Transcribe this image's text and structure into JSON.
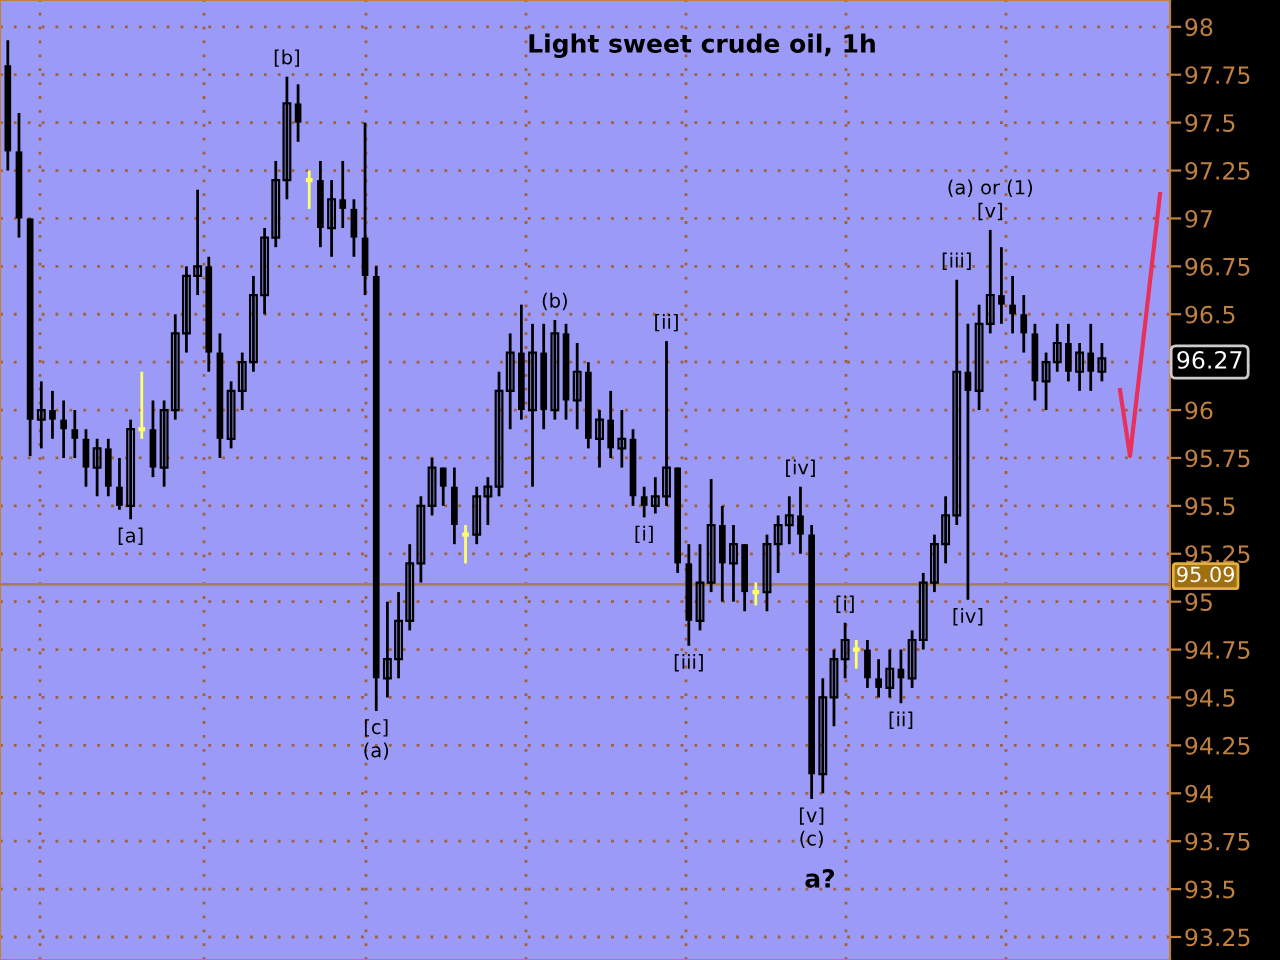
{
  "chart_data": {
    "type": "candlestick",
    "title": "Light sweet crude oil, 1h",
    "categories": [
      null,
      null,
      null,
      null,
      null,
      null,
      null,
      null,
      null,
      null,
      null,
      null,
      null,
      null,
      null,
      null,
      null,
      null,
      null,
      null,
      null,
      null,
      null,
      null,
      null,
      null,
      null,
      null,
      null,
      null,
      null,
      null,
      null,
      null,
      null,
      null,
      null,
      null,
      null,
      null,
      null,
      null,
      null,
      null,
      null,
      null,
      null,
      null,
      null,
      null,
      null,
      null,
      null,
      null,
      null,
      null,
      null,
      null,
      null,
      null,
      null,
      null,
      null,
      null,
      null,
      null,
      null,
      null,
      null,
      null,
      null,
      null,
      null,
      null,
      null,
      null,
      null,
      null,
      null,
      null,
      null,
      null,
      null,
      null,
      null,
      null,
      null,
      null,
      null,
      null,
      null,
      null,
      null,
      null,
      null,
      null,
      null,
      null,
      null
    ],
    "ohlc": [
      [
        97.8,
        97.93,
        97.25,
        97.35
      ],
      [
        97.35,
        97.55,
        96.9,
        97.0
      ],
      [
        97.0,
        97.0,
        95.76,
        95.95
      ],
      [
        95.95,
        96.15,
        95.8,
        96.0
      ],
      [
        96.0,
        96.1,
        95.85,
        95.95
      ],
      [
        95.95,
        96.05,
        95.75,
        95.9
      ],
      [
        95.9,
        96.0,
        95.75,
        95.85
      ],
      [
        95.85,
        95.9,
        95.6,
        95.7
      ],
      [
        95.7,
        95.85,
        95.55,
        95.8
      ],
      [
        95.8,
        95.85,
        95.55,
        95.6
      ],
      [
        95.6,
        95.75,
        95.48,
        95.5
      ],
      [
        95.5,
        95.95,
        95.43,
        95.9
      ],
      [
        95.9,
        96.2,
        95.85,
        95.9
      ],
      [
        95.9,
        96.05,
        95.65,
        95.7
      ],
      [
        95.7,
        96.05,
        95.6,
        96.0
      ],
      [
        96.0,
        96.5,
        95.95,
        96.4
      ],
      [
        96.4,
        96.75,
        96.3,
        96.7
      ],
      [
        96.7,
        97.15,
        96.6,
        96.75
      ],
      [
        96.75,
        96.8,
        96.2,
        96.3
      ],
      [
        96.3,
        96.4,
        95.75,
        95.85
      ],
      [
        95.85,
        96.15,
        95.8,
        96.1
      ],
      [
        96.1,
        96.3,
        96.0,
        96.25
      ],
      [
        96.25,
        96.7,
        96.2,
        96.6
      ],
      [
        96.6,
        96.95,
        96.5,
        96.9
      ],
      [
        96.9,
        97.3,
        96.85,
        97.2
      ],
      [
        97.2,
        97.74,
        97.1,
        97.6
      ],
      [
        97.6,
        97.7,
        97.4,
        97.5
      ],
      [
        97.2,
        97.25,
        97.05,
        97.2
      ],
      [
        97.2,
        97.3,
        96.85,
        96.95
      ],
      [
        96.95,
        97.2,
        96.8,
        97.1
      ],
      [
        97.1,
        97.3,
        96.95,
        97.05
      ],
      [
        97.05,
        97.1,
        96.8,
        96.9
      ],
      [
        96.9,
        97.5,
        96.6,
        96.7
      ],
      [
        96.7,
        96.75,
        94.43,
        94.6
      ],
      [
        94.6,
        95.0,
        94.5,
        94.7
      ],
      [
        94.7,
        95.05,
        94.6,
        94.9
      ],
      [
        94.9,
        95.3,
        94.85,
        95.2
      ],
      [
        95.2,
        95.55,
        95.1,
        95.5
      ],
      [
        95.5,
        95.75,
        95.45,
        95.7
      ],
      [
        95.7,
        95.7,
        95.5,
        95.6
      ],
      [
        95.6,
        95.7,
        95.3,
        95.4
      ],
      [
        95.35,
        95.4,
        95.2,
        95.35
      ],
      [
        95.35,
        95.6,
        95.3,
        95.55
      ],
      [
        95.55,
        95.65,
        95.4,
        95.6
      ],
      [
        95.6,
        96.2,
        95.55,
        96.1
      ],
      [
        96.1,
        96.4,
        95.9,
        96.3
      ],
      [
        96.3,
        96.55,
        95.95,
        96.0
      ],
      [
        96.0,
        96.45,
        95.6,
        96.3
      ],
      [
        96.3,
        96.45,
        95.9,
        96.0
      ],
      [
        96.0,
        96.47,
        95.95,
        96.4
      ],
      [
        96.4,
        96.45,
        95.95,
        96.05
      ],
      [
        96.05,
        96.35,
        95.9,
        96.2
      ],
      [
        96.2,
        96.25,
        95.8,
        95.85
      ],
      [
        95.85,
        96.0,
        95.7,
        95.95
      ],
      [
        95.95,
        96.1,
        95.75,
        95.8
      ],
      [
        95.8,
        96.0,
        95.7,
        95.85
      ],
      [
        95.85,
        95.9,
        95.5,
        95.55
      ],
      [
        95.55,
        95.6,
        95.44,
        95.5
      ],
      [
        95.5,
        95.65,
        95.46,
        95.55
      ],
      [
        95.55,
        96.36,
        95.5,
        95.7
      ],
      [
        95.7,
        95.7,
        95.15,
        95.2
      ],
      [
        95.2,
        95.3,
        94.77,
        94.9
      ],
      [
        94.9,
        95.3,
        94.85,
        95.1
      ],
      [
        95.1,
        95.64,
        95.05,
        95.4
      ],
      [
        95.4,
        95.5,
        95.0,
        95.2
      ],
      [
        95.2,
        95.4,
        95.0,
        95.3
      ],
      [
        95.3,
        95.3,
        94.95,
        95.05
      ],
      [
        95.05,
        95.1,
        94.98,
        95.05
      ],
      [
        95.05,
        95.35,
        94.95,
        95.3
      ],
      [
        95.3,
        95.45,
        95.15,
        95.4
      ],
      [
        95.4,
        95.55,
        95.3,
        95.45
      ],
      [
        95.45,
        95.6,
        95.25,
        95.35
      ],
      [
        95.35,
        95.4,
        93.97,
        94.1
      ],
      [
        94.1,
        94.6,
        94.0,
        94.5
      ],
      [
        94.5,
        94.75,
        94.35,
        94.7
      ],
      [
        94.7,
        94.89,
        94.6,
        94.8
      ],
      [
        94.75,
        94.8,
        94.65,
        94.75
      ],
      [
        94.75,
        94.8,
        94.55,
        94.6
      ],
      [
        94.6,
        94.7,
        94.5,
        94.55
      ],
      [
        94.55,
        94.75,
        94.5,
        94.65
      ],
      [
        94.65,
        94.75,
        94.47,
        94.6
      ],
      [
        94.6,
        94.85,
        94.55,
        94.8
      ],
      [
        94.8,
        95.15,
        94.75,
        95.1
      ],
      [
        95.1,
        95.35,
        95.05,
        95.3
      ],
      [
        95.3,
        95.55,
        95.2,
        95.45
      ],
      [
        95.45,
        96.68,
        95.4,
        96.2
      ],
      [
        96.2,
        96.45,
        95.01,
        96.1
      ],
      [
        96.1,
        96.55,
        96.0,
        96.45
      ],
      [
        96.45,
        96.94,
        96.4,
        96.6
      ],
      [
        96.6,
        96.85,
        96.45,
        96.55
      ],
      [
        96.55,
        96.7,
        96.4,
        96.5
      ],
      [
        96.5,
        96.6,
        96.3,
        96.4
      ],
      [
        96.4,
        96.45,
        96.05,
        96.15
      ],
      [
        96.15,
        96.3,
        96.0,
        96.25
      ],
      [
        96.25,
        96.45,
        96.2,
        96.35
      ],
      [
        96.35,
        96.45,
        96.15,
        96.2
      ],
      [
        96.2,
        96.35,
        96.1,
        96.3
      ],
      [
        96.3,
        96.45,
        96.1,
        96.2
      ],
      [
        96.2,
        96.35,
        96.15,
        96.27
      ]
    ],
    "colors": [
      "#000000",
      "#000000",
      "#000000",
      "#000000",
      "#000000",
      "#000000",
      "#000000",
      "#000000",
      "#000000",
      "#000000",
      "#000000",
      "#000000",
      "#ffff66",
      "#000000",
      "#000000",
      "#000000",
      "#000000",
      "#000000",
      "#000000",
      "#000000",
      "#000000",
      "#000000",
      "#000000",
      "#000000",
      "#000000",
      "#000000",
      "#000000",
      "#ffff66",
      "#000000",
      "#000000",
      "#000000",
      "#000000",
      "#000000",
      "#000000",
      "#000000",
      "#000000",
      "#000000",
      "#000000",
      "#000000",
      "#000000",
      "#000000",
      "#ffff66",
      "#000000",
      "#000000",
      "#000000",
      "#000000",
      "#000000",
      "#000000",
      "#000000",
      "#000000",
      "#000000",
      "#000000",
      "#000000",
      "#000000",
      "#000000",
      "#000000",
      "#000000",
      "#000000",
      "#000000",
      "#000000",
      "#000000",
      "#000000",
      "#000000",
      "#000000",
      "#000000",
      "#000000",
      "#000000",
      "#ffff66",
      "#000000",
      "#000000",
      "#000000",
      "#000000",
      "#000000",
      "#000000",
      "#000000",
      "#000000",
      "#ffff66",
      "#000000",
      "#000000",
      "#000000",
      "#000000",
      "#000000",
      "#000000",
      "#000000",
      "#000000",
      "#000000",
      "#000000",
      "#000000",
      "#000000",
      "#000000",
      "#000000",
      "#000000",
      "#000000",
      "#000000",
      "#000000",
      "#000000",
      "#000000",
      "#000000",
      "#000000"
    ],
    "ref_lines": [
      {
        "axis": "y",
        "value": 95.09,
        "label": "95.09",
        "color": "#a08060"
      }
    ],
    "annotations": [
      "[b]",
      "[a]",
      "[c]\n(a)",
      "(b)",
      "[ii]",
      "[i]",
      "[iii]",
      "[iv]",
      "[v]\n(c)",
      "a?",
      "[i]",
      "[ii]",
      "[iii]",
      "[iv]",
      "(a) or (1)\n[v]",
      "96.27"
    ],
    "ylim": [
      93.13,
      98.14
    ],
    "yticks": [
      93.25,
      93.5,
      93.75,
      94,
      94.25,
      94.5,
      94.75,
      95,
      95.25,
      95.5,
      95.75,
      96,
      96.25,
      96.5,
      96.75,
      97,
      97.25,
      97.5,
      97.75,
      98
    ],
    "grid": true,
    "tick_labels": "y"
  }
}
